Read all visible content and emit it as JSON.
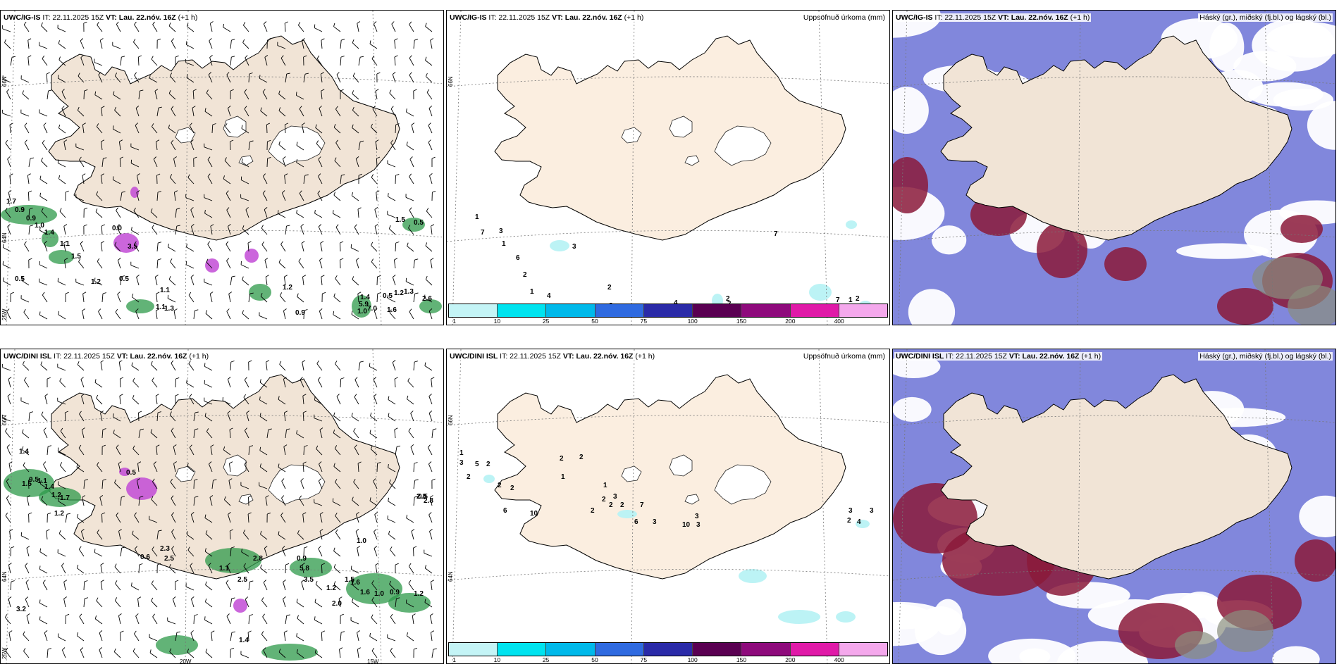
{
  "colors": {
    "land": "#f1e4d6",
    "precip_land": "#fbeee0",
    "ice": "#ffffff",
    "coast": "#000000",
    "cloud_high": "#8a8f7e",
    "cloud_mid": "#6b72d6",
    "cloud_low": "#8b1a3a",
    "wind_barb": "#000000",
    "precip_green": "#2e9a4a",
    "precip_purple": "#c24bd6",
    "precip_cyan": "#b8f2f4"
  },
  "panels": [
    {
      "id": "ig-wind",
      "model": "UWC/IG-IS",
      "it_label": " IT: 22.11.2025 15Z ",
      "vt_label": "VT: Lau. 22.nóv. 16Z",
      "lead": " (+1 h)",
      "right_title": "",
      "lat_labels": [
        "66N",
        "64N"
      ],
      "lon_labels": [
        "25W"
      ],
      "values": [
        "1.7",
        "0.9",
        "0.9",
        "1.0",
        "1.4",
        "0.5",
        "1.1",
        "1.5",
        "0.0",
        "3.5",
        "0.5",
        "1.2",
        "1.2",
        "1.1",
        "1.3",
        "1.1",
        "0.9",
        "1.4",
        "0.5",
        "1.2",
        "1.3",
        "5.9",
        "7.0",
        "1.6",
        "2.6",
        "0.5",
        "1.5",
        "1.0"
      ]
    },
    {
      "id": "ig-precip",
      "model": "UWC/IG-IS",
      "it_label": " IT: 22.11.2025 15Z ",
      "vt_label": "VT: Lau. 22.nóv. 16Z",
      "lead": " (+1 h)",
      "right_title": "Uppsöfnuð úrkoma (mm)",
      "lat_labels": [
        "66N"
      ],
      "lon_labels": [],
      "values": [
        "1",
        "7",
        "3",
        "1",
        "6",
        "2",
        "3",
        "1",
        "4",
        "2",
        "2",
        "2",
        "4",
        "2",
        "7",
        "7",
        "2",
        "7",
        "1"
      ]
    },
    {
      "id": "ig-cloud",
      "model": "UWC/IG-IS",
      "it_label": " IT: 22.11.2025 15Z ",
      "vt_label": "VT: Lau. 22.nóv. 16Z",
      "lead": " (+1 h)",
      "right_title": "Háský (gr.), miðský (fj.bl.) og lágský (bl.)",
      "lat_labels": [],
      "lon_labels": [],
      "values": []
    },
    {
      "id": "dini-wind",
      "model": "UWC/DINI ISL",
      "it_label": " IT: 22.11.2025 15Z ",
      "vt_label": "VT: Lau. 22.nóv. 16Z",
      "lead": " (+1 h)",
      "right_title": "",
      "lat_labels": [
        "66N",
        "64N"
      ],
      "lon_labels": [
        "25W",
        "20W",
        "15W"
      ],
      "values": [
        "1.4",
        "2.8",
        "1.0",
        "1.6",
        "0.5",
        "1.5",
        "1.1",
        "1.4",
        "1.2",
        "1.7",
        "1.2",
        "0.5",
        "0.6",
        "2.3",
        "2.5",
        "2.8",
        "1.1",
        "2.5",
        "1.4",
        "0.9",
        "5.8",
        "3.5",
        "1.2",
        "2.0",
        "1.5",
        "1.6",
        "1.0",
        "0.9",
        "1.2",
        "3.2",
        "0.5",
        "2.8"
      ]
    },
    {
      "id": "dini-precip",
      "model": "UWC/DINI ISL",
      "it_label": " IT: 22.11.2025 15Z ",
      "vt_label": "VT: Lau. 22.nóv. 16Z",
      "lead": " (+1 h)",
      "right_title": "Uppsöfnuð úrkoma (mm)",
      "lat_labels": [
        "66N",
        "64N"
      ],
      "lon_labels": [],
      "values": [
        "1",
        "3",
        "5",
        "2",
        "2",
        "2",
        "2",
        "6",
        "2",
        "2",
        "1",
        "1",
        "3",
        "2",
        "2",
        "2",
        "2",
        "7",
        "6",
        "10",
        "3",
        "3",
        "3",
        "3",
        "4",
        "10",
        "2",
        "3"
      ]
    },
    {
      "id": "dini-cloud",
      "model": "UWC/DINI ISL",
      "it_label": " IT: 22.11.2025 15Z ",
      "vt_label": "VT: Lau. 22.nóv. 16Z",
      "lead": " (+1 h)",
      "right_title": "Háský (gr.), miðský (fj.bl.) og lágský (bl.)",
      "lat_labels": [],
      "lon_labels": [],
      "values": []
    }
  ],
  "colorbar": {
    "labels": [
      "1",
      "10",
      "25",
      "50",
      "75",
      "100",
      "150",
      "200",
      "400"
    ],
    "colors": [
      "#c4f4f6",
      "#00e3ef",
      "#00b9ea",
      "#2f6ae0",
      "#2a2aa8",
      "#5a0052",
      "#8e0a7c",
      "#e01aa8",
      "#f4a8ec"
    ]
  }
}
